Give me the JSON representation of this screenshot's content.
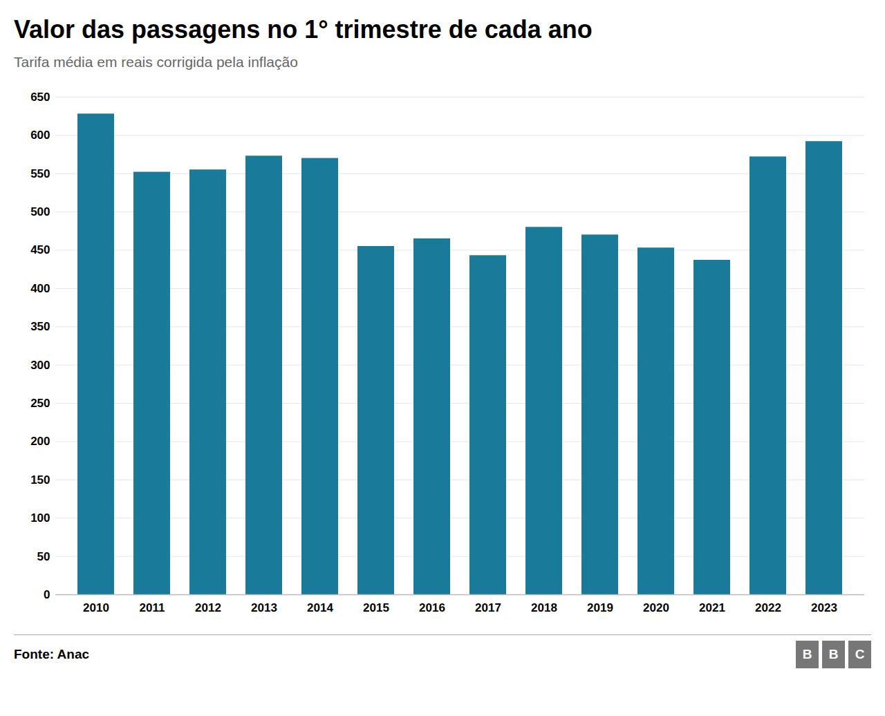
{
  "chart_data": {
    "type": "bar",
    "title": "Valor das passagens no 1° trimestre de cada ano",
    "subtitle": "Tarifa média em reais corrigida pela inflação",
    "annotations": [
      "Fonte: Anac",
      "BBC"
    ],
    "categories": [
      "2010",
      "2011",
      "2012",
      "2013",
      "2014",
      "2015",
      "2016",
      "2017",
      "2018",
      "2019",
      "2020",
      "2021",
      "2022",
      "2023"
    ],
    "values": [
      628,
      552,
      555,
      573,
      570,
      455,
      465,
      443,
      480,
      470,
      453,
      437,
      572,
      592
    ],
    "color": "#1a7a9a",
    "ylim": [
      0,
      650
    ],
    "yticks": [
      0,
      50,
      100,
      150,
      200,
      250,
      300,
      350,
      400,
      450,
      500,
      550,
      600,
      650
    ],
    "grid": true
  }
}
